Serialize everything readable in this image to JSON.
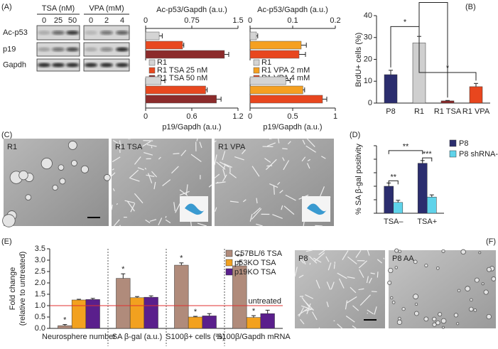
{
  "figure": {
    "panel_labels": [
      "(A)",
      "(B)",
      "(C)",
      "(D)",
      "(E)",
      "(F)"
    ],
    "blot": {
      "groups": [
        "TSA (nM)",
        "VPA (mM)"
      ],
      "lanes": [
        "0",
        "25",
        "50",
        "0",
        "2",
        "4"
      ],
      "rows": [
        "Ac-p53",
        "p19",
        "Gapdh"
      ]
    },
    "images_c": [
      "R1",
      "R1 TSA",
      "R1 VPA"
    ],
    "images_f": [
      "P8",
      "P8 AA"
    ]
  },
  "chart_data": [
    {
      "type": "barh",
      "xaxis": "top",
      "xlabel": "Ac-p53/Gapdh (a.u.)",
      "xlim": [
        0,
        1.5
      ],
      "xticks": [
        0,
        0.75,
        1.5
      ],
      "series": [
        {
          "name": "R1",
          "color": "#d4d4d4",
          "values": [
            0.22
          ],
          "errors": [
            0.05
          ]
        },
        {
          "name": "R1 TSA 25 nM",
          "color": "#e8481f",
          "values": [
            0.6
          ],
          "errors": [
            0.02
          ]
        },
        {
          "name": "R1 TSA 50 nM",
          "color": "#8c2b2b",
          "values": [
            1.28
          ],
          "errors": [
            0.07
          ]
        }
      ]
    },
    {
      "type": "barh",
      "xaxis": "bottom",
      "xlabel": "p19/Gapdh (a.u.)",
      "xlim": [
        0,
        1.2
      ],
      "xticks": [
        0,
        0.6,
        1.2
      ],
      "series": [
        {
          "color": "#d4d4d4",
          "values": [
            0.2
          ],
          "errors": [
            0.05
          ]
        },
        {
          "color": "#e8481f",
          "values": [
            0.78
          ],
          "errors": [
            0.02
          ]
        },
        {
          "color": "#8c2b2b",
          "values": [
            0.92
          ],
          "errors": [
            0.06
          ]
        }
      ]
    },
    {
      "type": "barh",
      "xaxis": "top",
      "xlabel": "Ac-p53/Gapdh (a.u.)",
      "xlim": [
        0,
        0.2
      ],
      "xticks": [
        0,
        0.1,
        0.2
      ],
      "series": [
        {
          "name": "R1",
          "color": "#d4d4d4",
          "values": [
            0.015
          ],
          "errors": [
            0.003
          ]
        },
        {
          "name": "R1 VPA 2 mM",
          "color": "#f5a021",
          "values": [
            0.12
          ],
          "errors": [
            0.012
          ]
        },
        {
          "name": "R1 VPA 4 mM",
          "color": "#e8461e",
          "values": [
            0.115
          ],
          "errors": [
            0.015
          ]
        }
      ]
    },
    {
      "type": "barh",
      "xaxis": "bottom",
      "xlabel": "p19/Gapdh (a.u.)",
      "xlim": [
        0,
        1
      ],
      "xticks": [
        0,
        0.5,
        1
      ],
      "series": [
        {
          "color": "#d4d4d4",
          "values": [
            0.42
          ],
          "errors": [
            0.05
          ]
        },
        {
          "color": "#f5a021",
          "values": [
            0.62
          ],
          "errors": [
            0.02
          ]
        },
        {
          "color": "#e8461e",
          "values": [
            0.85
          ],
          "errors": [
            0.05
          ]
        }
      ]
    },
    {
      "type": "bar",
      "ylabel": "BrdU+ cells (%)",
      "categories": [
        "P8",
        "R1",
        "R1 TSA",
        "R1 VPA"
      ],
      "series": [
        {
          "colors": [
            "#2b2d6e",
            "#cfcfcf",
            "#8c2b2b",
            "#e8461e"
          ],
          "values": [
            13,
            27.5,
            1,
            7.5
          ],
          "errors": [
            2,
            3,
            0.2,
            1.5
          ]
        }
      ],
      "ylim": [
        0,
        40
      ],
      "yticks": [
        0,
        10,
        20,
        30,
        40
      ],
      "annotations": [
        "*",
        "**",
        "*"
      ]
    },
    {
      "type": "bar",
      "ylabel": "% SA β-gal positivity",
      "categories": [
        "TSA–",
        "TSA+"
      ],
      "series": [
        {
          "name": "P8",
          "color": "#2b2d6e",
          "values": [
            100,
            185
          ],
          "errors": [
            12,
            10
          ]
        },
        {
          "name": "P8 shRNA-p53",
          "color": "#5fd3ea",
          "values": [
            40,
            60
          ],
          "errors": [
            8,
            8
          ]
        }
      ],
      "ylim": [
        0,
        250
      ],
      "annotations": [
        "**",
        "***",
        "**"
      ]
    },
    {
      "type": "bar",
      "ylabel": [
        "Fold change",
        "(relative to untreated)"
      ],
      "categories": [
        "Neurosphere number",
        "SA β-gal (a.u.)",
        "S100β+ cells (%)",
        "S100β/Gapdh mRNA"
      ],
      "series": [
        {
          "name": "C57BL/6 TSA",
          "color": "#b08b7b",
          "values": [
            0.12,
            2.2,
            2.78,
            2.75
          ],
          "errors": [
            0.05,
            0.2,
            0.1,
            0.2
          ]
        },
        {
          "name": "p53KO TSA",
          "color": "#f2a11f",
          "values": [
            1.25,
            1.35,
            0.5,
            0.48
          ],
          "errors": [
            0.03,
            0.05,
            0.03,
            0.08
          ]
        },
        {
          "name": "p19KO TSA",
          "color": "#5a1f8c",
          "values": [
            1.27,
            1.37,
            0.55,
            0.65
          ],
          "errors": [
            0.05,
            0.06,
            0.1,
            0.15
          ]
        }
      ],
      "ylim": [
        0,
        3.5
      ],
      "yticks": [
        {
          "value": 0,
          "label": "0.0"
        },
        {
          "value": 0.5,
          "label": "0.5"
        },
        {
          "value": 1,
          "label": "1.0"
        },
        {
          "value": 1.5,
          "label": "1.5"
        },
        {
          "value": 2,
          "label": "2.0"
        },
        {
          "value": 2.5,
          "label": "2.5"
        },
        {
          "value": 3,
          "label": "3.0"
        },
        {
          "value": 3.5,
          "label": "3.5"
        }
      ],
      "reference_line": {
        "value": 1,
        "label": "untreated",
        "color": "#e03030"
      },
      "annotations": [
        "*",
        "*",
        "*",
        "**",
        "*",
        "*"
      ]
    }
  ]
}
